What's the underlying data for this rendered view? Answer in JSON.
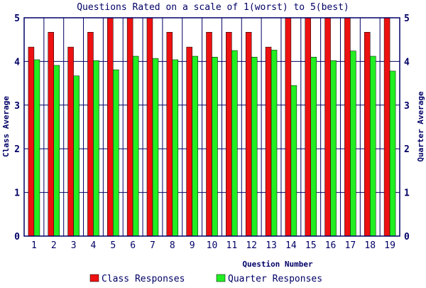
{
  "chart_data": {
    "type": "bar",
    "title": "Questions Rated on a scale of 1(worst) to 5(best)",
    "xlabel": "Question Number",
    "ylabel": "Class Average",
    "ylabel_right": "Quarter Average",
    "ylim": [
      0,
      5
    ],
    "yticks": [
      0,
      1,
      2,
      3,
      4,
      5
    ],
    "categories": [
      "1",
      "2",
      "3",
      "4",
      "5",
      "6",
      "7",
      "8",
      "9",
      "10",
      "11",
      "12",
      "13",
      "14",
      "15",
      "16",
      "17",
      "18",
      "19"
    ],
    "series": [
      {
        "name": "Class Responses",
        "color": "#ee1111",
        "values": [
          4.33,
          4.67,
          4.33,
          4.67,
          5.0,
          5.0,
          5.0,
          4.67,
          4.33,
          4.67,
          4.67,
          4.67,
          4.33,
          5.0,
          5.0,
          5.0,
          5.0,
          4.67,
          5.0
        ]
      },
      {
        "name": "Quarter Responses",
        "color": "#22ee22",
        "values": [
          4.04,
          3.91,
          3.67,
          4.02,
          3.81,
          4.12,
          4.07,
          4.04,
          4.12,
          4.1,
          4.25,
          4.1,
          4.26,
          3.45,
          4.1,
          4.02,
          4.24,
          4.12,
          3.78
        ]
      }
    ],
    "grid": true,
    "legend": "bottom",
    "frame_color": "#000066",
    "text_color": "#000066"
  }
}
